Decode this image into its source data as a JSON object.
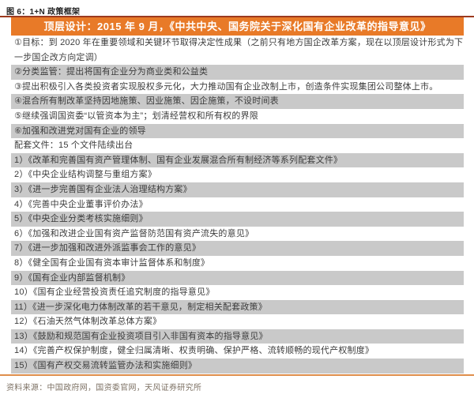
{
  "figure": {
    "title": "图 6：1+N 政策框架",
    "source": "资料来源：中国政府网，国资委官网，天风证券研究所"
  },
  "table": {
    "header": "顶层设计：2015 年 9 月，《中共中央、国务院关于深化国有企业改革的指导意见》",
    "rows": [
      {
        "text": "①目标：到 2020 年在重要领域和关键环节取得决定性成果（之前只有地方国企改革方案，现在以顶层设计形式为下一步国企改方向定调）",
        "shade": false
      },
      {
        "text": "②分类监管：提出将国有企业分为商业类和公益类",
        "shade": true
      },
      {
        "text": "③提出积极引入各类投资者实现股权多元化，大力推动国有企业改制上市，创造条件实现集团公司整体上市。",
        "shade": false
      },
      {
        "text": "④混合所有制改革坚持因地施策、因业施策、因企施策，不设时间表",
        "shade": true
      },
      {
        "text": "⑤继续强调国资委“以管资本为主”；划清经营权和所有权的界限",
        "shade": false
      },
      {
        "text": "⑥加强和改进党对国有企业的领导",
        "shade": true
      },
      {
        "text": "配套文件：15 个文件陆续出台",
        "shade": false
      },
      {
        "text": "1）《改革和完善国有资产管理体制、国有企业发展混合所有制经济等系列配套文件》",
        "shade": true
      },
      {
        "text": "2）《中央企业结构调整与重组方案》",
        "shade": false
      },
      {
        "text": "3）《进一步完善国有企业法人治理结构方案》",
        "shade": true
      },
      {
        "text": "4）《完善中央企业董事评价办法》",
        "shade": false
      },
      {
        "text": "5）《中央企业分类考核实施细则》",
        "shade": true
      },
      {
        "text": "6）《加强和改进企业国有资产监督防范国有资产流失的意见》",
        "shade": false
      },
      {
        "text": "7）《进一步加强和改进外派监事会工作的意见》",
        "shade": true
      },
      {
        "text": "8）《健全国有企业国有资本审计监督体系和制度》",
        "shade": false
      },
      {
        "text": "9）《国有企业内部监督机制》",
        "shade": true
      },
      {
        "text": "10）《国有企业经营投资责任追究制度的指导意见》",
        "shade": false
      },
      {
        "text": "11）《进一步深化电力体制改革的若干意见，制定相关配套政策》",
        "shade": true
      },
      {
        "text": "12）《石油天然气体制改革总体方案》",
        "shade": false
      },
      {
        "text": "13）《鼓励和规范国有企业投资项目引入非国有资本的指导意见》",
        "shade": true
      },
      {
        "text": "14）《完善产权保护制度，健全归属清晰、权责明确、保护严格、流转顺畅的现代产权制度》",
        "shade": false
      },
      {
        "text": "15）《国有产权交易流转监管办法和实施细则》",
        "shade": true
      }
    ]
  },
  "colors": {
    "header_bg": "#e87a28",
    "top_rule": "#9c3a1f",
    "row_shade": "#c9c9c9",
    "bottom_rule": "#df8f4c",
    "body_text": "#3c3c3c",
    "source_text": "#7e7265"
  }
}
